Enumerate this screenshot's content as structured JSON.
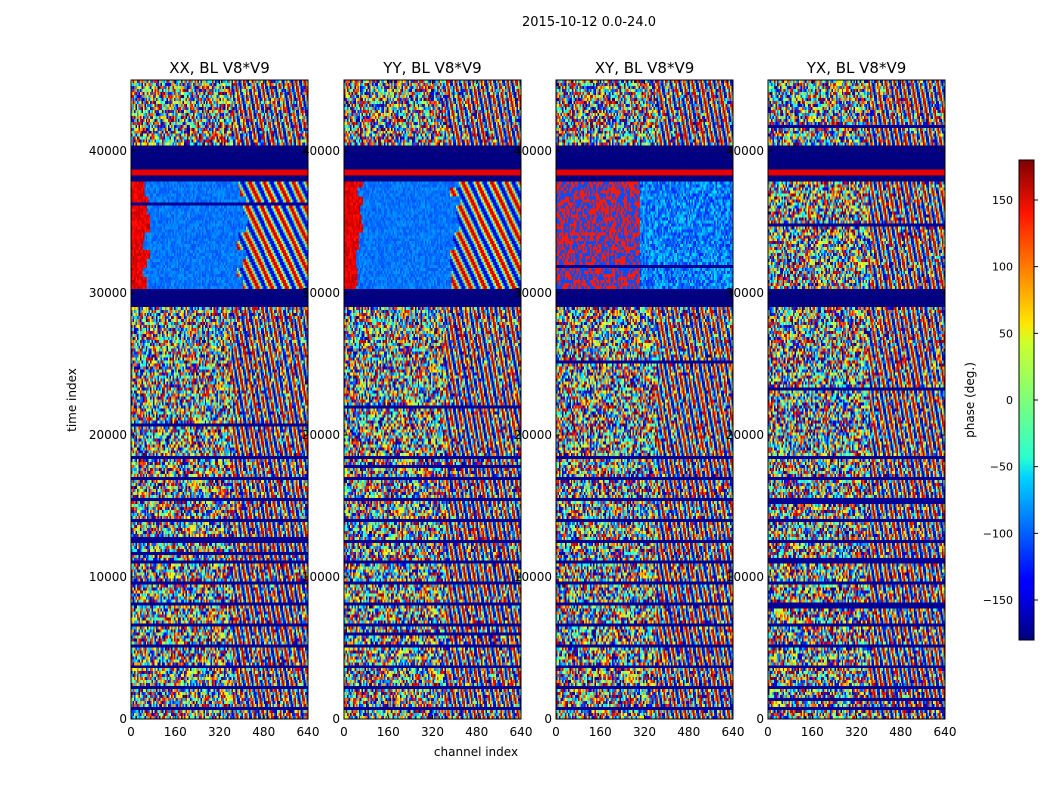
{
  "chart_data": {
    "type": "heatmap",
    "suptitle": "2015-10-12 0.0-24.0",
    "colormap": "jet",
    "panels": [
      {
        "title": "XX, BL V8*V9",
        "id": "xx"
      },
      {
        "title": "YY, BL V8*V9",
        "id": "yy"
      },
      {
        "title": "XY, BL V8*V9",
        "id": "xy"
      },
      {
        "title": "YX, BL V8*V9",
        "id": "yx"
      }
    ],
    "xlabel": "channel index",
    "ylabel": "time index",
    "x_ticks": [
      "0",
      "160",
      "320",
      "480",
      "640"
    ],
    "x_tick_values": [
      0,
      160,
      320,
      480,
      640
    ],
    "y_ticks": [
      "0",
      "10000",
      "20000",
      "30000",
      "40000"
    ],
    "y_tick_values": [
      0,
      10000,
      20000,
      30000,
      40000
    ],
    "xlim": [
      0,
      640
    ],
    "ylim": [
      0,
      45000
    ],
    "colorbar": {
      "label": "phase (deg.)",
      "ticks": [
        "−150",
        "−100",
        "−50",
        "0",
        "50",
        "100",
        "150"
      ],
      "tick_values": [
        -150,
        -100,
        -50,
        0,
        50,
        100,
        150
      ],
      "range": [
        -180,
        180
      ]
    },
    "flagged_rows": [
      [
        38000,
        40400
      ],
      [
        29200,
        30400
      ]
    ]
  }
}
